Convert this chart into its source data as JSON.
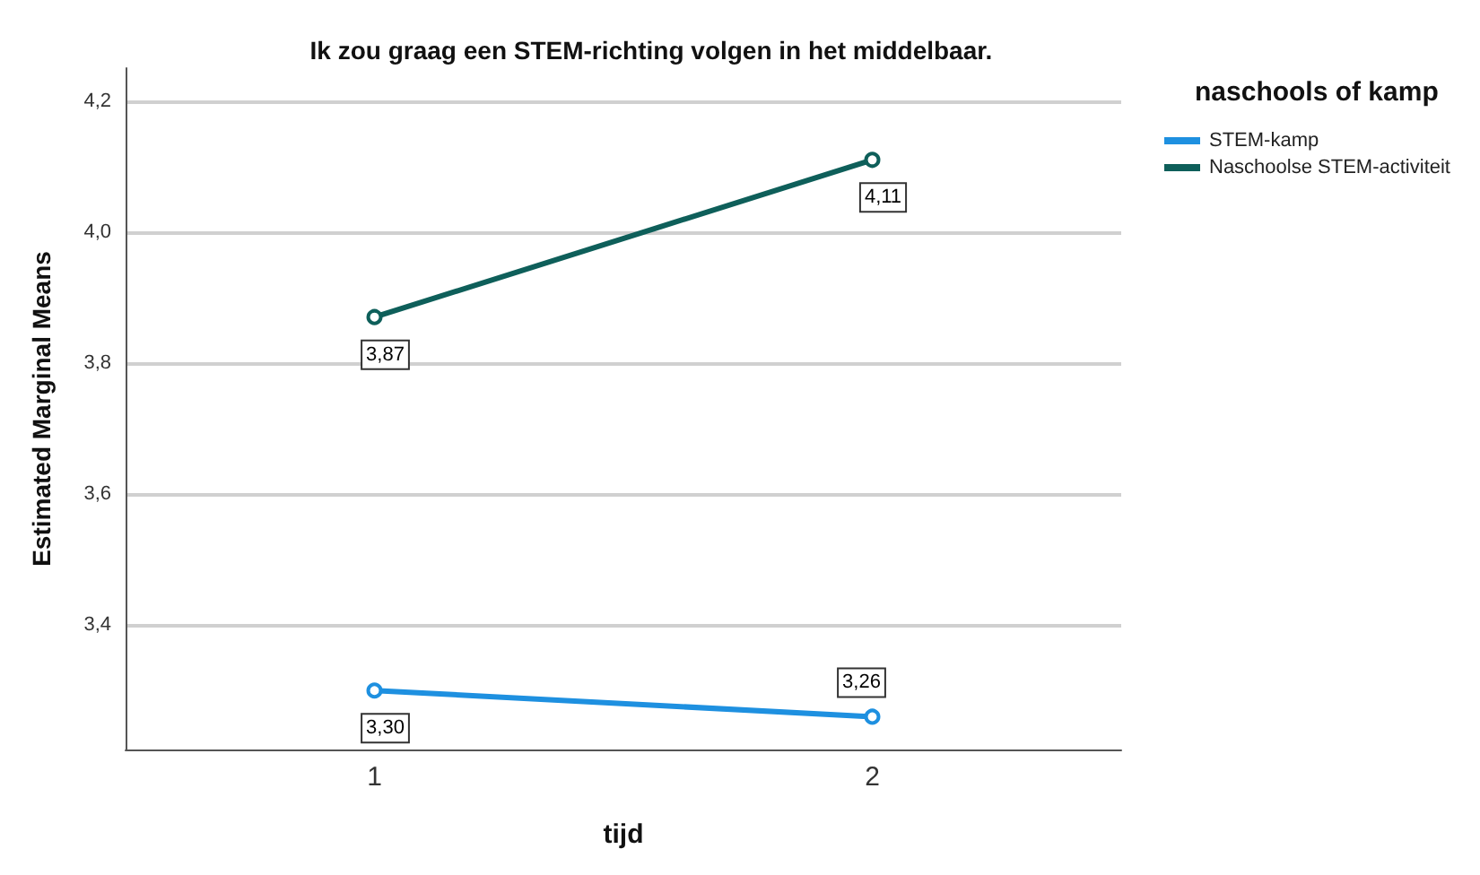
{
  "chart_data": {
    "type": "line",
    "title": "Ik zou graag een STEM-richting volgen in het middelbaar.",
    "xlabel": "tijd",
    "ylabel": "Estimated Marginal Means",
    "legend_title": "naschools of kamp",
    "categories": [
      "1",
      "2"
    ],
    "series": [
      {
        "name": "STEM-kamp",
        "color": "#1e90e0",
        "values": [
          3.3,
          3.26
        ],
        "value_labels": [
          "3,30",
          "3,26"
        ]
      },
      {
        "name": "Naschoolse STEM-activiteit",
        "color": "#0e5f5a",
        "values": [
          3.87,
          4.11
        ],
        "value_labels": [
          "3,87",
          "4,11"
        ]
      }
    ],
    "ylim": [
      3.21,
      4.25
    ],
    "yticks": [
      {
        "value": 3.4,
        "label": "3,4"
      },
      {
        "value": 3.6,
        "label": "3,6"
      },
      {
        "value": 3.8,
        "label": "3,8"
      },
      {
        "value": 4.0,
        "label": "4,0"
      },
      {
        "value": 4.2,
        "label": "4,2"
      }
    ],
    "grid": "y",
    "legend": "top right",
    "marker": "circle",
    "line_style": "solid"
  }
}
